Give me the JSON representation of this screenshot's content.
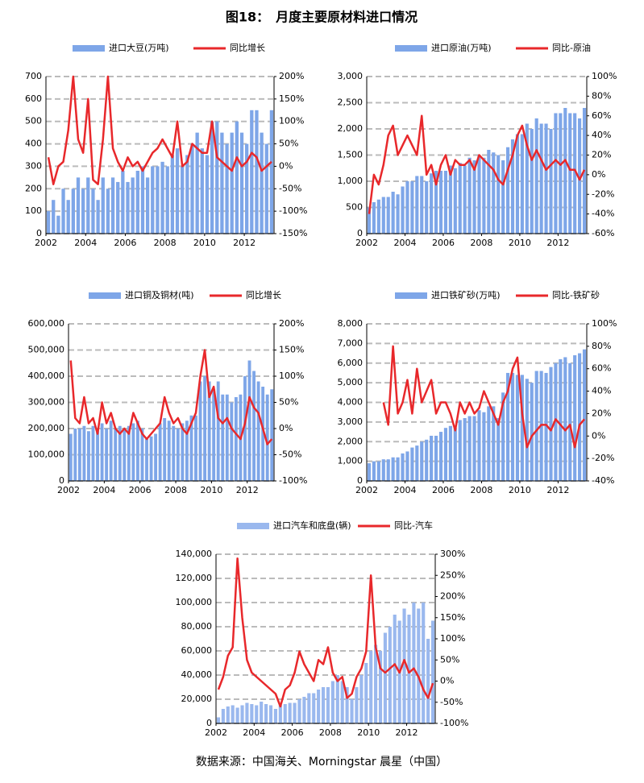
{
  "title": "图18：　月度主要原材料进口情况",
  "source": "数据来源：中国海关、Morningstar 晨星（中国）",
  "chart_data": [
    {
      "type": "combo",
      "xlim": [
        2002,
        2013.5
      ],
      "xticks": [
        2002,
        2004,
        2006,
        2008,
        2010,
        2012
      ],
      "x": [
        2002,
        2002.25,
        2002.5,
        2002.75,
        2003,
        2003.25,
        2003.5,
        2003.75,
        2004,
        2004.25,
        2004.5,
        2004.75,
        2005,
        2005.25,
        2005.5,
        2005.75,
        2006,
        2006.25,
        2006.5,
        2006.75,
        2007,
        2007.25,
        2007.5,
        2007.75,
        2008,
        2008.25,
        2008.5,
        2008.75,
        2009,
        2009.25,
        2009.5,
        2009.75,
        2010,
        2010.25,
        2010.5,
        2010.75,
        2011,
        2011.25,
        2011.5,
        2011.75,
        2012,
        2012.25,
        2012.5,
        2012.75,
        2013,
        2013.25
      ],
      "ylim": [
        0,
        700
      ],
      "yticks": [
        0,
        100,
        200,
        300,
        400,
        500,
        600,
        700
      ],
      "y2lim": [
        -150,
        200
      ],
      "y2ticks": [
        {
          "value": -150,
          "label": "-150%"
        },
        {
          "value": -100,
          "label": "-100%"
        },
        {
          "value": -50,
          "label": "-50%"
        },
        {
          "value": 0,
          "label": "0%"
        },
        {
          "value": 50,
          "label": "50%"
        },
        {
          "value": 100,
          "label": "100%"
        },
        {
          "value": 150,
          "label": "150%"
        },
        {
          "value": 200,
          "label": "200%"
        }
      ],
      "series": [
        {
          "name": "进口大豆(万吨)",
          "color": "#7ea6e8",
          "values": [
            100,
            150,
            80,
            200,
            150,
            200,
            250,
            200,
            250,
            200,
            150,
            250,
            200,
            250,
            230,
            280,
            230,
            250,
            280,
            300,
            250,
            300,
            300,
            320,
            300,
            350,
            380,
            300,
            350,
            400,
            450,
            380,
            350,
            500,
            500,
            450,
            400,
            450,
            500,
            450,
            400,
            550,
            550,
            450,
            400,
            550
          ]
        },
        {
          "name": "同比增长",
          "color": "#e8282b",
          "axis": "y2",
          "values": [
            20,
            -40,
            0,
            10,
            80,
            200,
            60,
            30,
            150,
            -30,
            -40,
            60,
            200,
            40,
            10,
            -10,
            20,
            0,
            10,
            -10,
            10,
            30,
            40,
            60,
            40,
            20,
            100,
            0,
            10,
            50,
            40,
            30,
            30,
            100,
            20,
            10,
            0,
            -10,
            20,
            0,
            10,
            30,
            20,
            -10,
            0,
            10
          ]
        }
      ]
    },
    {
      "type": "combo",
      "xlim": [
        2002,
        2013.5
      ],
      "xticks": [
        2002,
        2004,
        2006,
        2008,
        2010,
        2012
      ],
      "x": [
        2002,
        2002.25,
        2002.5,
        2002.75,
        2003,
        2003.25,
        2003.5,
        2003.75,
        2004,
        2004.25,
        2004.5,
        2004.75,
        2005,
        2005.25,
        2005.5,
        2005.75,
        2006,
        2006.25,
        2006.5,
        2006.75,
        2007,
        2007.25,
        2007.5,
        2007.75,
        2008,
        2008.25,
        2008.5,
        2008.75,
        2009,
        2009.25,
        2009.5,
        2009.75,
        2010,
        2010.25,
        2010.5,
        2010.75,
        2011,
        2011.25,
        2011.5,
        2011.75,
        2012,
        2012.25,
        2012.5,
        2012.75,
        2013,
        2013.25
      ],
      "ylim": [
        0,
        3000
      ],
      "yticks": [
        0,
        500,
        {
          "value": 1000,
          "label": "1,000"
        },
        {
          "value": 1500,
          "label": "1,500"
        },
        {
          "value": 2000,
          "label": "2,000"
        },
        {
          "value": 2500,
          "label": "2,500"
        },
        {
          "value": 3000,
          "label": "3,000"
        }
      ],
      "y2lim": [
        -60,
        100
      ],
      "y2ticks": [
        {
          "value": -60,
          "label": "-60%"
        },
        {
          "value": -40,
          "label": "-40%"
        },
        {
          "value": -20,
          "label": "-20%"
        },
        {
          "value": 0,
          "label": "0%"
        },
        {
          "value": 20,
          "label": "20%"
        },
        {
          "value": 40,
          "label": "40%"
        },
        {
          "value": 60,
          "label": "60%"
        },
        {
          "value": 80,
          "label": "80%"
        },
        {
          "value": 100,
          "label": "100%"
        }
      ],
      "series": [
        {
          "name": "进口原油(万吨)",
          "color": "#7ea6e8",
          "values": [
            500,
            600,
            650,
            700,
            700,
            800,
            750,
            900,
            1000,
            1000,
            1100,
            1100,
            1000,
            1150,
            1200,
            1200,
            1200,
            1300,
            1250,
            1350,
            1300,
            1450,
            1400,
            1500,
            1450,
            1600,
            1550,
            1500,
            1400,
            1650,
            1800,
            1900,
            1900,
            2100,
            2000,
            2200,
            2100,
            2100,
            2000,
            2300,
            2300,
            2400,
            2300,
            2300,
            2200,
            2400
          ]
        },
        {
          "name": "同比-原油",
          "color": "#e8282b",
          "axis": "y2",
          "values": [
            -40,
            0,
            -10,
            10,
            40,
            50,
            20,
            30,
            40,
            30,
            20,
            60,
            0,
            10,
            -10,
            10,
            20,
            0,
            15,
            10,
            10,
            15,
            5,
            20,
            15,
            10,
            5,
            -5,
            -10,
            5,
            20,
            40,
            50,
            30,
            15,
            25,
            15,
            5,
            10,
            15,
            10,
            15,
            5,
            5,
            -5,
            5
          ]
        }
      ]
    },
    {
      "type": "combo",
      "xlim": [
        2002,
        2013.5
      ],
      "xticks": [
        2002,
        2004,
        2006,
        2008,
        2010,
        2012
      ],
      "x": [
        2002,
        2002.25,
        2002.5,
        2002.75,
        2003,
        2003.25,
        2003.5,
        2003.75,
        2004,
        2004.25,
        2004.5,
        2004.75,
        2005,
        2005.25,
        2005.5,
        2005.75,
        2006,
        2006.25,
        2006.5,
        2006.75,
        2007,
        2007.25,
        2007.5,
        2007.75,
        2008,
        2008.25,
        2008.5,
        2008.75,
        2009,
        2009.25,
        2009.5,
        2009.75,
        2010,
        2010.25,
        2010.5,
        2010.75,
        2011,
        2011.25,
        2011.5,
        2011.75,
        2012,
        2012.25,
        2012.5,
        2012.75,
        2013,
        2013.25
      ],
      "ylim": [
        0,
        600000
      ],
      "yticks": [
        0,
        {
          "value": 100000,
          "label": "100,000"
        },
        {
          "value": 200000,
          "label": "200,000"
        },
        {
          "value": 300000,
          "label": "300,000"
        },
        {
          "value": 400000,
          "label": "400,000"
        },
        {
          "value": 500000,
          "label": "500,000"
        },
        {
          "value": 600000,
          "label": "600,000"
        }
      ],
      "y2lim": [
        -100,
        200
      ],
      "y2ticks": [
        {
          "value": -100,
          "label": "-100%"
        },
        {
          "value": -50,
          "label": "-50%"
        },
        {
          "value": 0,
          "label": "0%"
        },
        {
          "value": 50,
          "label": "50%"
        },
        {
          "value": 100,
          "label": "100%"
        },
        {
          "value": 150,
          "label": "150%"
        },
        {
          "value": 200,
          "label": "200%"
        }
      ],
      "series": [
        {
          "name": "进口铜及铜材(吨)",
          "color": "#7ea6e8",
          "values": [
            180000,
            200000,
            200000,
            210000,
            190000,
            210000,
            200000,
            220000,
            200000,
            230000,
            200000,
            210000,
            200000,
            210000,
            220000,
            230000,
            200000,
            160000,
            170000,
            180000,
            220000,
            240000,
            230000,
            210000,
            200000,
            220000,
            230000,
            250000,
            250000,
            380000,
            400000,
            380000,
            350000,
            380000,
            330000,
            330000,
            300000,
            320000,
            330000,
            400000,
            460000,
            420000,
            380000,
            360000,
            330000,
            350000
          ]
        },
        {
          "name": "同比增长",
          "color": "#e8282b",
          "axis": "y2",
          "values": [
            130,
            20,
            10,
            60,
            10,
            20,
            -10,
            50,
            10,
            30,
            0,
            -10,
            0,
            -10,
            30,
            10,
            -10,
            -20,
            -10,
            0,
            10,
            60,
            30,
            10,
            20,
            0,
            -10,
            10,
            30,
            100,
            150,
            60,
            80,
            20,
            10,
            20,
            0,
            -10,
            -20,
            10,
            60,
            40,
            30,
            0,
            -30,
            -20
          ]
        }
      ]
    },
    {
      "type": "combo",
      "xlim": [
        2002,
        2013.5
      ],
      "xticks": [
        2002,
        2004,
        2006,
        2008,
        2010,
        2012
      ],
      "x": [
        2002,
        2002.25,
        2002.5,
        2002.75,
        2003,
        2003.25,
        2003.5,
        2003.75,
        2004,
        2004.25,
        2004.5,
        2004.75,
        2005,
        2005.25,
        2005.5,
        2005.75,
        2006,
        2006.25,
        2006.5,
        2006.75,
        2007,
        2007.25,
        2007.5,
        2007.75,
        2008,
        2008.25,
        2008.5,
        2008.75,
        2009,
        2009.25,
        2009.5,
        2009.75,
        2010,
        2010.25,
        2010.5,
        2010.75,
        2011,
        2011.25,
        2011.5,
        2011.75,
        2012,
        2012.25,
        2012.5,
        2012.75,
        2013,
        2013.25
      ],
      "ylim": [
        0,
        8000
      ],
      "yticks": [
        0,
        {
          "value": 1000,
          "label": "1,000"
        },
        {
          "value": 2000,
          "label": "2,000"
        },
        {
          "value": 3000,
          "label": "3,000"
        },
        {
          "value": 4000,
          "label": "4,000"
        },
        {
          "value": 5000,
          "label": "5,000"
        },
        {
          "value": 6000,
          "label": "6,000"
        },
        {
          "value": 7000,
          "label": "7,000"
        },
        {
          "value": 8000,
          "label": "8,000"
        }
      ],
      "y2lim": [
        -40,
        100
      ],
      "y2ticks": [
        {
          "value": -40,
          "label": "-40%"
        },
        {
          "value": -20,
          "label": "-20%"
        },
        {
          "value": 0,
          "label": "0%"
        },
        {
          "value": 20,
          "label": "20%"
        },
        {
          "value": 40,
          "label": "40%"
        },
        {
          "value": 60,
          "label": "60%"
        },
        {
          "value": 80,
          "label": "80%"
        },
        {
          "value": 100,
          "label": "100%"
        }
      ],
      "series": [
        {
          "name": "进口铁矿砂(万吨)",
          "color": "#7ea6e8",
          "values": [
            900,
            1000,
            1000,
            1100,
            1100,
            1200,
            1200,
            1400,
            1500,
            1700,
            1800,
            2000,
            2100,
            2300,
            2300,
            2500,
            2700,
            2800,
            2700,
            3100,
            3200,
            3300,
            3300,
            3600,
            3500,
            3800,
            3800,
            3200,
            4500,
            5500,
            5500,
            5400,
            5400,
            5200,
            5000,
            5600,
            5600,
            5500,
            5800,
            6000,
            6200,
            6300,
            6000,
            6400,
            6500,
            6700
          ]
        },
        {
          "name": "同比-铁矿砂",
          "color": "#e8282b",
          "axis": "y2",
          "values": [
            null,
            null,
            null,
            30,
            10,
            80,
            20,
            30,
            50,
            20,
            60,
            30,
            40,
            50,
            20,
            30,
            30,
            20,
            5,
            30,
            20,
            30,
            20,
            25,
            40,
            30,
            20,
            10,
            30,
            40,
            60,
            70,
            20,
            -10,
            0,
            5,
            10,
            10,
            5,
            15,
            10,
            5,
            10,
            -10,
            10,
            15
          ]
        }
      ]
    },
    {
      "type": "combo",
      "xlim": [
        2002,
        2013.5
      ],
      "xticks": [
        2002,
        2004,
        2006,
        2008,
        2010,
        2012
      ],
      "x": [
        2002,
        2002.25,
        2002.5,
        2002.75,
        2003,
        2003.25,
        2003.5,
        2003.75,
        2004,
        2004.25,
        2004.5,
        2004.75,
        2005,
        2005.25,
        2005.5,
        2005.75,
        2006,
        2006.25,
        2006.5,
        2006.75,
        2007,
        2007.25,
        2007.5,
        2007.75,
        2008,
        2008.25,
        2008.5,
        2008.75,
        2009,
        2009.25,
        2009.5,
        2009.75,
        2010,
        2010.25,
        2010.5,
        2010.75,
        2011,
        2011.25,
        2011.5,
        2011.75,
        2012,
        2012.25,
        2012.5,
        2012.75,
        2013,
        2013.25
      ],
      "ylim": [
        0,
        140000
      ],
      "yticks": [
        0,
        {
          "value": 20000,
          "label": "20,000"
        },
        {
          "value": 40000,
          "label": "40,000"
        },
        {
          "value": 60000,
          "label": "60,000"
        },
        {
          "value": 80000,
          "label": "80,000"
        },
        {
          "value": 100000,
          "label": "100,000"
        },
        {
          "value": 120000,
          "label": "120,000"
        },
        {
          "value": 140000,
          "label": "140,000"
        }
      ],
      "y2lim": [
        -100,
        300
      ],
      "y2ticks": [
        {
          "value": -100,
          "label": "-100%"
        },
        {
          "value": -50,
          "label": "-50%"
        },
        {
          "value": 0,
          "label": "0%"
        },
        {
          "value": 50,
          "label": "50%"
        },
        {
          "value": 100,
          "label": "100%"
        },
        {
          "value": 150,
          "label": "150%"
        },
        {
          "value": 200,
          "label": "200%"
        },
        {
          "value": 250,
          "label": "250%"
        },
        {
          "value": 300,
          "label": "300%"
        }
      ],
      "series": [
        {
          "name": "进口汽车和底盘(辆)",
          "color": "#9ab8ee",
          "values": [
            5000,
            12000,
            14000,
            15000,
            13000,
            15000,
            17000,
            16000,
            15000,
            18000,
            16000,
            15000,
            12000,
            15000,
            16000,
            17000,
            17000,
            20000,
            22000,
            25000,
            25000,
            28000,
            30000,
            30000,
            35000,
            40000,
            35000,
            30000,
            20000,
            30000,
            40000,
            50000,
            60000,
            65000,
            60000,
            75000,
            80000,
            90000,
            85000,
            95000,
            90000,
            100000,
            95000,
            100000,
            70000,
            85000
          ]
        },
        {
          "name": "同比-汽车",
          "color": "#e8282b",
          "axis": "y2",
          "values": [
            -20,
            10,
            60,
            80,
            290,
            150,
            50,
            20,
            10,
            0,
            -10,
            -20,
            -30,
            -60,
            -20,
            -10,
            20,
            70,
            40,
            20,
            0,
            50,
            40,
            80,
            20,
            0,
            10,
            -40,
            -30,
            10,
            30,
            70,
            250,
            80,
            30,
            20,
            30,
            40,
            20,
            50,
            20,
            30,
            10,
            -20,
            -40,
            -5
          ]
        }
      ]
    }
  ]
}
